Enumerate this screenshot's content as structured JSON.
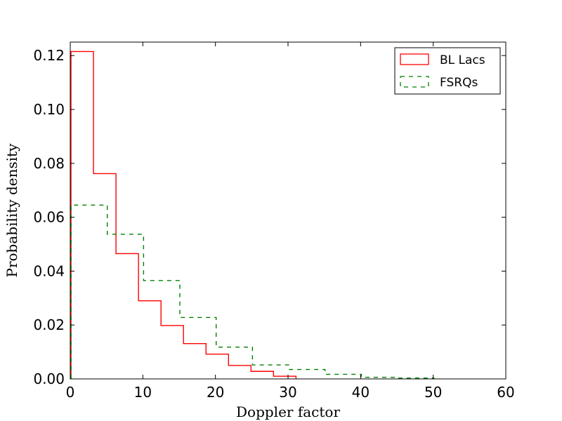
{
  "chart_data": {
    "type": "histogram",
    "xlabel": "Doppler factor",
    "ylabel": "Probability density",
    "xlim": [
      0,
      60
    ],
    "ylim": [
      0,
      0.125
    ],
    "xticks": [
      0,
      10,
      20,
      30,
      40,
      50,
      60
    ],
    "xtick_labels": [
      "0",
      "10",
      "20",
      "30",
      "40",
      "50",
      "60"
    ],
    "yticks": [
      0,
      0.02,
      0.04,
      0.06,
      0.08,
      0.1,
      0.12
    ],
    "ytick_labels": [
      "0.00",
      "0.02",
      "0.04",
      "0.06",
      "0.08",
      "0.10",
      "0.12"
    ],
    "grid": false,
    "legend_position": "top-right",
    "series": [
      {
        "name": "BL Lacs",
        "color": "#ff0000",
        "linestyle": "solid",
        "bin_edges": [
          0.1,
          3.2,
          6.3,
          9.4,
          12.5,
          15.6,
          18.7,
          21.8,
          24.9,
          28.0,
          31.1
        ],
        "values": [
          0.1215,
          0.0762,
          0.0465,
          0.029,
          0.0198,
          0.0131,
          0.0092,
          0.005,
          0.0028,
          0.001
        ]
      },
      {
        "name": "FSRQs",
        "color": "#008000",
        "linestyle": "dashed",
        "bin_edges": [
          0.1,
          5.1,
          10.1,
          15.1,
          20.1,
          25.1,
          30.1,
          35.1,
          40.1,
          45.1,
          50.1
        ],
        "values": [
          0.0645,
          0.0537,
          0.0365,
          0.0228,
          0.0118,
          0.0052,
          0.0035,
          0.0017,
          0.0006,
          0.0003
        ]
      }
    ]
  }
}
